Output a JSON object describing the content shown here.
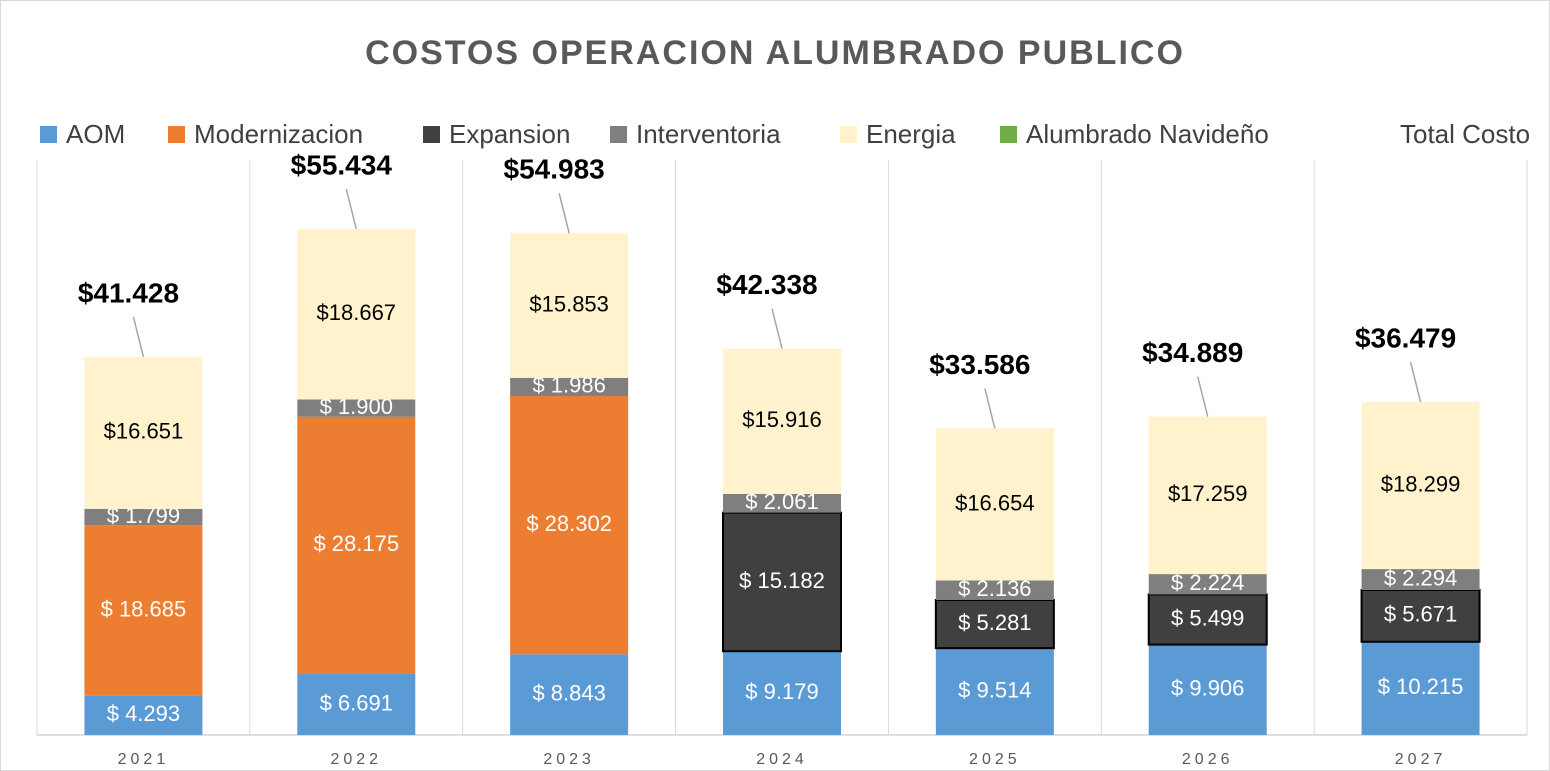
{
  "chart_data": {
    "type": "stacked-bar",
    "title": "COSTOS OPERACION ALUMBRADO PUBLICO",
    "categories": [
      "2021",
      "2022",
      "2023",
      "2024",
      "2025",
      "2026",
      "2027"
    ],
    "ylim": [
      0,
      63000
    ],
    "grid": true,
    "series": [
      {
        "name": "AOM",
        "color": "#5b9bd5",
        "values": [
          4293,
          6691,
          8843,
          9179,
          9514,
          9906,
          10215
        ],
        "value_labels": [
          "$ 4.293",
          "$ 6.691",
          "$ 8.843",
          "$ 9.179",
          "$ 9.514",
          "$ 9.906",
          "$ 10.215"
        ]
      },
      {
        "name": "Modernizacion",
        "color": "#ed7d31",
        "values": [
          18685,
          28175,
          28302,
          null,
          null,
          null,
          null
        ],
        "value_labels": [
          "$ 18.685",
          "$ 28.175",
          "$ 28.302",
          null,
          null,
          null,
          null
        ]
      },
      {
        "name": "Expansion",
        "color": "#404040",
        "values": [
          null,
          null,
          null,
          15182,
          5281,
          5499,
          5671
        ],
        "value_labels": [
          null,
          null,
          null,
          "$ 15.182",
          "$ 5.281",
          "$ 5.499",
          "$ 5.671"
        ]
      },
      {
        "name": "Interventoria",
        "color": "#7f7f7f",
        "values": [
          1799,
          1900,
          1986,
          2061,
          2136,
          2224,
          2294
        ],
        "value_labels": [
          "$ 1.799",
          "$ 1.900",
          "$ 1.986",
          "$ 2.061",
          "$ 2.136",
          "$ 2.224",
          "$ 2.294"
        ]
      },
      {
        "name": "Energia",
        "color": "#fff2cc",
        "values": [
          16651,
          18667,
          15853,
          15916,
          16654,
          17259,
          18299
        ],
        "value_labels": [
          "$16.651",
          "$18.667",
          "$15.853",
          "$15.916",
          "$16.654",
          "$17.259",
          "$18.299"
        ]
      },
      {
        "name": "Alumbrado Navideño",
        "color": "#70ad47",
        "values": [
          null,
          null,
          null,
          null,
          null,
          null,
          null
        ]
      },
      {
        "name": "Total Costo",
        "values": [
          41428,
          55434,
          54983,
          42338,
          33586,
          34889,
          36479
        ],
        "value_labels": [
          "$41.428",
          "$55.434",
          "$54.983",
          "$42.338",
          "$33.586",
          "$34.889",
          "$36.479"
        ]
      }
    ]
  }
}
